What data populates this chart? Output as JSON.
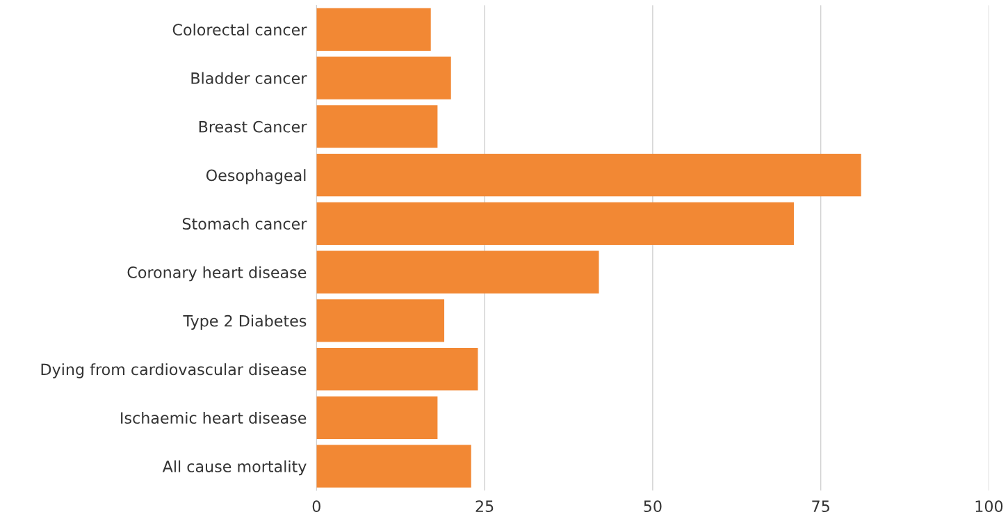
{
  "chart_data": {
    "type": "bar",
    "orientation": "horizontal",
    "categories": [
      "Colorectal cancer",
      "Bladder cancer",
      "Breast Cancer",
      "Oesophageal",
      "Stomach cancer",
      "Coronary heart disease",
      "Type 2 Diabetes",
      "Dying from cardiovascular disease",
      "Ischaemic heart disease",
      "All cause mortality"
    ],
    "values": [
      17,
      20,
      18,
      81,
      71,
      42,
      19,
      24,
      18,
      23
    ],
    "color": "#f28834",
    "xlim": [
      0,
      100
    ],
    "xticks": [
      0,
      25,
      50,
      75,
      100
    ],
    "grid": "x"
  }
}
